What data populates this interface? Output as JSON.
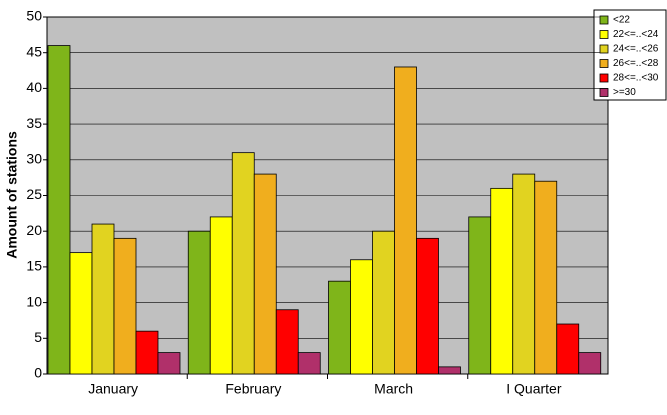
{
  "chart_data": {
    "type": "bar",
    "y_label": "Amount of stations",
    "categories": [
      "January",
      "February",
      "March",
      "I Quarter"
    ],
    "series": [
      {
        "name": "<22",
        "color": "#7fb51a",
        "values": [
          46,
          20,
          13,
          22
        ]
      },
      {
        "name": "22<=..<24",
        "color": "#ffff00",
        "values": [
          17,
          22,
          16,
          26
        ]
      },
      {
        "name": "24<=..<26",
        "color": "#e1d320",
        "values": [
          21,
          31,
          20,
          28
        ]
      },
      {
        "name": "26<=..<28",
        "color": "#f0ae1e",
        "values": [
          19,
          28,
          43,
          27
        ]
      },
      {
        "name": "28<=..<30",
        "color": "#ff0000",
        "values": [
          6,
          9,
          19,
          7
        ]
      },
      {
        "name": ">=30",
        "color": "#b0306a",
        "values": [
          3,
          3,
          1,
          3
        ]
      }
    ],
    "ylim": [
      0,
      50
    ],
    "yticks": [
      0,
      5,
      10,
      15,
      20,
      25,
      30,
      35,
      40,
      45,
      50
    ],
    "grid": true,
    "legend": "top-right"
  }
}
